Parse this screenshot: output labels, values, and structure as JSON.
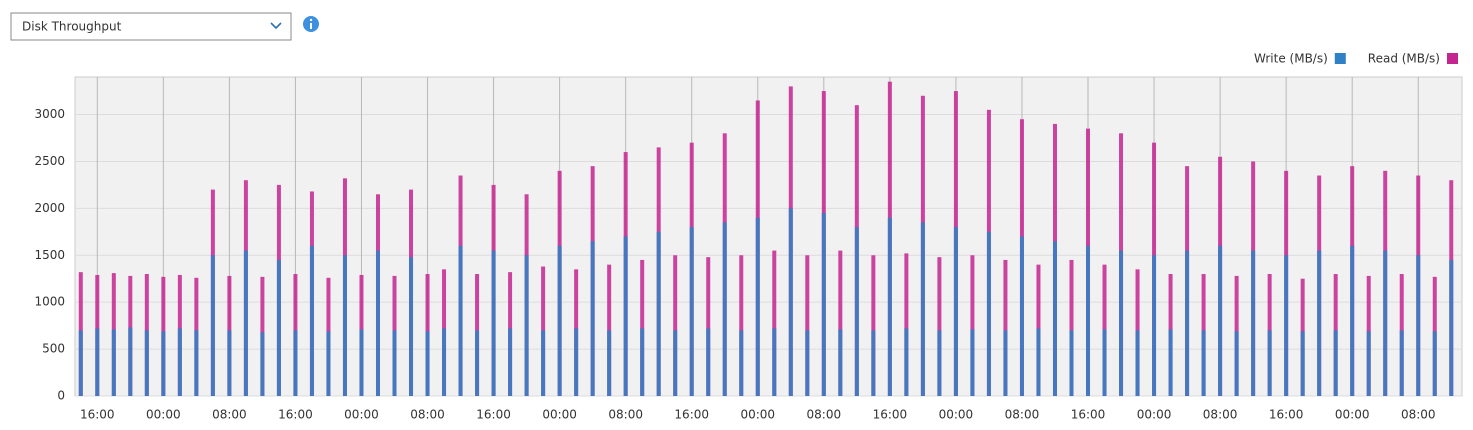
{
  "dropdown": {
    "label": "Disk Throughput"
  },
  "chart_data": {
    "type": "spike",
    "x": [
      -2,
      0,
      2,
      4,
      6,
      8,
      10,
      12,
      14,
      16,
      18,
      20,
      22,
      24,
      26,
      28,
      30,
      32,
      34,
      36,
      38,
      40,
      42,
      44,
      46,
      48,
      50,
      52,
      54,
      56,
      58,
      60,
      62,
      64,
      66,
      68,
      70,
      72,
      74,
      76,
      78,
      80,
      82,
      84,
      86,
      88,
      90,
      92,
      94,
      96,
      98,
      100,
      102,
      104,
      106,
      108,
      110,
      112,
      114,
      116,
      118,
      120,
      122,
      124,
      126,
      128,
      130,
      132,
      134,
      136,
      138,
      140,
      142,
      144,
      146,
      148,
      150,
      152,
      154,
      156,
      158,
      160,
      162,
      164
    ],
    "xlim": [
      -2.7,
      165.3
    ],
    "xticks": [
      {
        "value": 0,
        "label": "16:00"
      },
      {
        "value": 8,
        "label": "00:00"
      },
      {
        "value": 16,
        "label": "08:00"
      },
      {
        "value": 24,
        "label": "16:00"
      },
      {
        "value": 32,
        "label": "00:00"
      },
      {
        "value": 40,
        "label": "08:00"
      },
      {
        "value": 48,
        "label": "16:00"
      },
      {
        "value": 56,
        "label": "00:00"
      },
      {
        "value": 64,
        "label": "08:00"
      },
      {
        "value": 72,
        "label": "16:00"
      },
      {
        "value": 80,
        "label": "00:00"
      },
      {
        "value": 88,
        "label": "08:00"
      },
      {
        "value": 96,
        "label": "16:00"
      },
      {
        "value": 104,
        "label": "00:00"
      },
      {
        "value": 112,
        "label": "08:00"
      },
      {
        "value": 120,
        "label": "16:00"
      },
      {
        "value": 128,
        "label": "00:00"
      },
      {
        "value": 136,
        "label": "08:00"
      },
      {
        "value": 144,
        "label": "16:00"
      },
      {
        "value": 152,
        "label": "00:00"
      },
      {
        "value": 160,
        "label": "08:00"
      }
    ],
    "ylim": [
      0,
      3400
    ],
    "yticks": [
      0,
      500,
      1000,
      1500,
      2000,
      2500,
      3000
    ],
    "grid": true,
    "legend": "top-right",
    "series": [
      {
        "name": "Read (MB/s)",
        "color": "#c4258f",
        "values": [
          1320,
          1290,
          1310,
          1280,
          1300,
          1270,
          1290,
          1260,
          2200,
          1280,
          2300,
          1270,
          2250,
          1300,
          2180,
          1260,
          2320,
          1290,
          2150,
          1280,
          2200,
          1300,
          1350,
          2350,
          1300,
          2250,
          1320,
          2150,
          1380,
          2400,
          1350,
          2450,
          1400,
          2600,
          1450,
          2650,
          1500,
          2700,
          1480,
          2800,
          1500,
          3150,
          1550,
          3300,
          1500,
          3250,
          1550,
          3100,
          1500,
          3350,
          1520,
          3200,
          1480,
          3250,
          1500,
          3050,
          1450,
          2950,
          1400,
          2900,
          1450,
          2850,
          1400,
          2800,
          1350,
          2700,
          1300,
          2450,
          1300,
          2550,
          1280,
          2500,
          1300,
          2400,
          1250,
          2350,
          1300,
          2450,
          1280,
          2400,
          1300,
          2350,
          1270,
          2300
        ]
      },
      {
        "name": "Write (MB/s)",
        "color": "#2f80c4",
        "values": [
          700,
          720,
          710,
          730,
          700,
          690,
          720,
          700,
          1500,
          700,
          1550,
          680,
          1450,
          700,
          1600,
          690,
          1500,
          710,
          1550,
          700,
          1480,
          690,
          720,
          1600,
          700,
          1550,
          720,
          1500,
          700,
          1600,
          720,
          1650,
          700,
          1700,
          720,
          1750,
          700,
          1800,
          720,
          1850,
          700,
          1900,
          720,
          2000,
          700,
          1950,
          710,
          1800,
          700,
          1900,
          720,
          1850,
          700,
          1800,
          710,
          1750,
          700,
          1700,
          720,
          1650,
          700,
          1600,
          710,
          1550,
          700,
          1500,
          710,
          1550,
          700,
          1600,
          690,
          1550,
          700,
          1500,
          690,
          1550,
          700,
          1600,
          690,
          1550,
          700,
          1500,
          690,
          1450
        ]
      }
    ]
  }
}
